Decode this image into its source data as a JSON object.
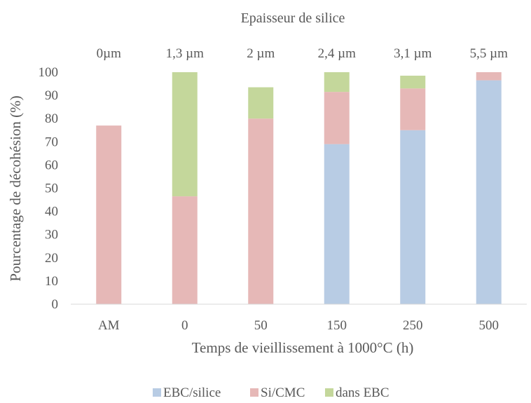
{
  "chart_data": {
    "type": "bar",
    "stacked": true,
    "title": "Epaisseur de silice",
    "top_labels": [
      "0µm",
      "1,3 µm",
      "2 µm",
      "2,4 µm",
      "3,1 µm",
      "5,5 µm"
    ],
    "categories": [
      "AM",
      "0",
      "50",
      "150",
      "250",
      "500"
    ],
    "xlabel": "Temps de vieillissement à 1000°C (h)",
    "ylabel": "Pourcentage de décohésion (%)",
    "ylim": [
      0,
      100
    ],
    "yticks": [
      0,
      10,
      20,
      30,
      40,
      50,
      60,
      70,
      80,
      90,
      100
    ],
    "grid": false,
    "legend_position": "bottom",
    "series": [
      {
        "name": "EBC/silice",
        "color": "#b8cce4",
        "values": [
          0,
          0,
          0,
          69,
          75,
          96.5
        ]
      },
      {
        "name": "Si/CMC",
        "color": "#e6b8b7",
        "values": [
          77,
          46.5,
          80,
          22.5,
          18,
          3.5
        ]
      },
      {
        "name": "dans EBC",
        "color": "#c4d79b",
        "values": [
          0,
          53.5,
          13.5,
          8.5,
          5.5,
          0
        ]
      }
    ]
  }
}
